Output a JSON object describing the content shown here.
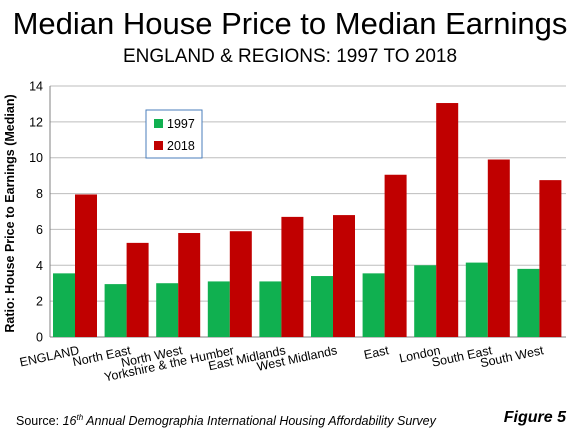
{
  "header": {
    "title": "Median House Price to Median Earnings",
    "subtitle": "ENGLAND & REGIONS: 1997 TO 2018"
  },
  "footer": {
    "source_prefix": "Source: ",
    "source_ordinal": "16",
    "source_ordinal_suffix": "th",
    "source_rest": " Annual Demographia International Housing Affordability Survey",
    "figure_label": "Figure 5"
  },
  "chart_data": {
    "type": "bar",
    "title": "Median House Price to Median Earnings",
    "subtitle": "ENGLAND & REGIONS: 1997 TO 2018",
    "xlabel": "",
    "ylabel": "Ratio: House Price to Earnings (Median)",
    "ylim": [
      0,
      14
    ],
    "yticks": [
      0,
      2,
      4,
      6,
      8,
      10,
      12,
      14
    ],
    "grid": true,
    "legend_position": "top-left",
    "categories": [
      "ENGLAND",
      "North East",
      "North West",
      "Yorkshire & the Humber",
      "East Midlands",
      "West Midlands",
      "East",
      "London",
      "South East",
      "South West"
    ],
    "series": [
      {
        "name": "1997",
        "color": "#10b050",
        "values": [
          3.55,
          2.95,
          3.0,
          3.1,
          3.1,
          3.4,
          3.55,
          4.0,
          4.15,
          3.8
        ]
      },
      {
        "name": "2018",
        "color": "#c00000",
        "values": [
          7.95,
          5.25,
          5.8,
          5.9,
          6.7,
          6.8,
          9.05,
          13.05,
          9.9,
          8.75
        ]
      }
    ]
  }
}
